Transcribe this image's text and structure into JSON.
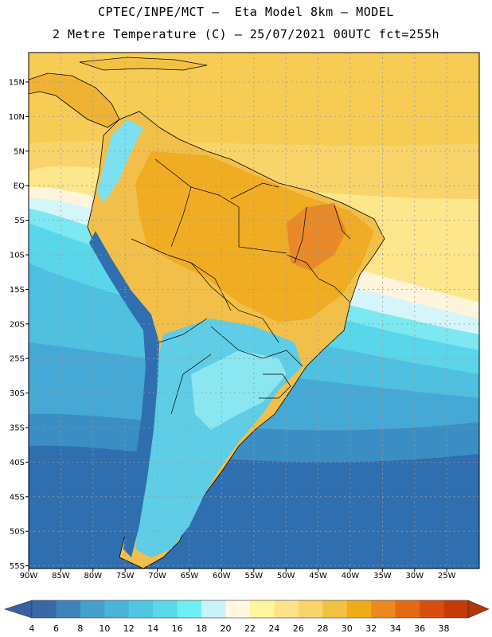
{
  "title": {
    "line1": "CPTEC/INPE/MCT –  Eta Model 8km – MODEL",
    "line2": "2 Metre Temperature (C) – 25/07/2021 00UTC fct=255h"
  },
  "map": {
    "lon_labels": [
      "90W",
      "85W",
      "80W",
      "75W",
      "70W",
      "65W",
      "60W",
      "55W",
      "50W",
      "45W",
      "40W",
      "35W",
      "30W",
      "25W"
    ],
    "lat_labels": [
      "15N",
      "10N",
      "5N",
      "EQ",
      "5S",
      "10S",
      "15S",
      "20S",
      "25S",
      "30S",
      "35S",
      "40S",
      "45S",
      "50S",
      "55S"
    ],
    "ocean_color": "#3aa0cc",
    "land_warm_color": "#f0b232",
    "graticule": "dotted"
  },
  "colorbar": {
    "labels": [
      "4",
      "6",
      "8",
      "10",
      "12",
      "14",
      "16",
      "18",
      "20",
      "22",
      "24",
      "26",
      "28",
      "30",
      "32",
      "34",
      "36",
      "38"
    ],
    "colors": [
      "#3768a8",
      "#3e82bc",
      "#46a0cd",
      "#4bb4d9",
      "#4fc7e3",
      "#5ad8ea",
      "#6deff4",
      "#c8f3fb",
      "#fff7e0",
      "#fff59c",
      "#fce38a",
      "#f9d46a",
      "#f3c142",
      "#f0ac18",
      "#ea8a20",
      "#e26a14",
      "#d84e0e",
      "#c63a0a"
    ],
    "low_arrow_color": "#3a5fa0",
    "high_arrow_color": "#b33508"
  }
}
